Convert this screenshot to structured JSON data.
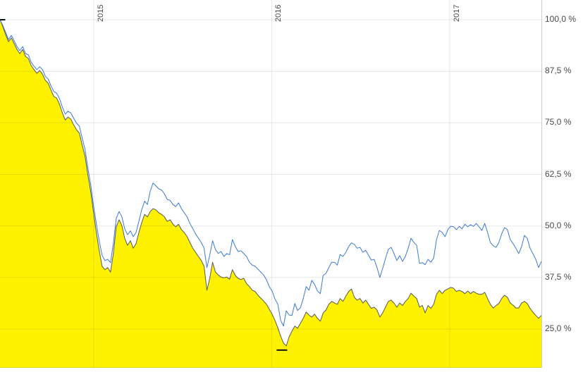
{
  "chart_data": {
    "type": "area+line",
    "title": "",
    "legend": "none",
    "background_color": "#ffffff",
    "grid_color": "rgba(0,0,0,0.09)",
    "axis_line_color": "#cccccc",
    "label_color": "#48484e",
    "x_axis": {
      "unit": "year",
      "range": [
        2014.473,
        2017.515
      ],
      "tick_years": [
        2015,
        2016,
        2017
      ],
      "tick_labels": [
        "2015",
        "2016",
        "2017"
      ],
      "label_rotation_deg": -90
    },
    "y_axis": {
      "unit": "%",
      "side": "right",
      "visible_range": [
        15.6,
        104.8
      ],
      "tick_values": [
        100,
        87.5,
        75,
        62.5,
        50,
        37.5,
        25
      ],
      "tick_labels": [
        "100,0 %",
        "87,5 %",
        "75,0 %",
        "62,5 %",
        "50,0 %",
        "37,5 %",
        "25,0 %"
      ]
    },
    "series": [
      {
        "name": "blue-line-series",
        "type": "line",
        "color": "#3b79d4",
        "values": [
          100.0,
          98.6,
          96.9,
          95.2,
          96.2,
          94.9,
          93.5,
          92.5,
          93.5,
          91.8,
          91.5,
          89.7,
          88.7,
          87.9,
          88.6,
          87.9,
          86.3,
          85.6,
          83.9,
          82.6,
          82.2,
          80.9,
          78.8,
          77.1,
          77.8,
          77.4,
          76.1,
          74.9,
          74.2,
          71.3,
          68.6,
          64.1,
          60.0,
          54.9,
          50.5,
          46.4,
          42.9,
          41.6,
          41.9,
          41.1,
          45.8,
          51.8,
          53.5,
          52.2,
          49.3,
          47.9,
          48.8,
          47.4,
          48.4,
          51.1,
          53.9,
          56.0,
          55.2,
          58.4,
          60.4,
          59.7,
          59.0,
          58.7,
          57.8,
          56.4,
          56.2,
          55.2,
          54.7,
          55.6,
          54.2,
          53.2,
          52.2,
          50.6,
          49.4,
          48.1,
          47.0,
          46.0,
          44.6,
          39.9,
          42.9,
          46.4,
          44.3,
          43.3,
          43.8,
          42.6,
          43.3,
          43.0,
          46.7,
          45.0,
          43.8,
          44.0,
          43.3,
          42.6,
          41.2,
          40.5,
          40.2,
          39.5,
          38.8,
          38.1,
          36.9,
          35.3,
          34.2,
          32.3,
          31.0,
          27.1,
          25.7,
          29.4,
          28.4,
          28.3,
          31.2,
          29.5,
          30.2,
          32.4,
          35.3,
          34.4,
          36.8,
          35.8,
          34.2,
          33.6,
          38.0,
          38.5,
          39.9,
          41.2,
          41.2,
          40.5,
          43.1,
          42.6,
          43.6,
          45.0,
          45.9,
          45.5,
          44.6,
          44.8,
          43.6,
          44.1,
          42.9,
          41.7,
          41.9,
          39.9,
          37.5,
          39.7,
          42.1,
          44.3,
          44.8,
          43.3,
          41.6,
          42.8,
          41.4,
          42.6,
          44.6,
          47.0,
          46.0,
          45.3,
          40.9,
          41.1,
          40.6,
          41.9,
          41.2,
          42.2,
          46.7,
          48.9,
          48.4,
          47.4,
          49.1,
          49.9,
          49.8,
          49.1,
          49.9,
          49.3,
          50.4,
          49.8,
          50.3,
          49.9,
          50.6,
          49.8,
          48.9,
          50.6,
          48.4,
          46.0,
          45.2,
          44.8,
          46.0,
          48.1,
          49.6,
          49.1,
          46.7,
          45.7,
          44.6,
          43.3,
          45.0,
          47.7,
          47.0,
          44.6,
          43.3,
          41.9,
          39.9,
          41.4
        ]
      },
      {
        "name": "yellow-area-series",
        "type": "area",
        "color": "#58585a",
        "fill": "#fef200",
        "values": [
          100.0,
          98.3,
          96.4,
          94.7,
          95.6,
          94.2,
          92.8,
          91.8,
          92.8,
          91.1,
          90.6,
          88.9,
          87.9,
          87.0,
          87.7,
          86.8,
          85.3,
          84.6,
          82.9,
          81.4,
          81.0,
          79.5,
          77.4,
          75.7,
          76.4,
          75.9,
          74.5,
          73.3,
          72.5,
          69.6,
          66.9,
          62.4,
          58.3,
          53.2,
          48.4,
          44.1,
          40.2,
          39.4,
          39.9,
          38.8,
          43.3,
          49.8,
          51.5,
          50.1,
          47.0,
          45.3,
          46.4,
          44.6,
          45.7,
          48.4,
          50.8,
          52.8,
          52.2,
          53.5,
          54.2,
          53.9,
          53.2,
          52.8,
          52.2,
          51.1,
          51.5,
          50.4,
          49.8,
          50.4,
          49.1,
          48.4,
          47.4,
          46.0,
          44.6,
          43.6,
          42.6,
          41.6,
          40.2,
          34.4,
          37.3,
          41.2,
          38.8,
          38.1,
          37.6,
          37.4,
          37.6,
          37.1,
          39.4,
          38.0,
          37.3,
          37.0,
          37.3,
          36.0,
          35.3,
          34.4,
          34.1,
          33.2,
          32.5,
          31.8,
          31.0,
          29.8,
          28.6,
          27.1,
          25.3,
          23.3,
          21.6,
          20.9,
          23.1,
          24.5,
          25.7,
          25.2,
          26.4,
          27.6,
          29.1,
          28.4,
          27.9,
          28.6,
          27.6,
          26.9,
          28.9,
          29.6,
          31.0,
          31.7,
          31.3,
          31.0,
          32.4,
          31.7,
          33.0,
          34.1,
          34.7,
          32.7,
          32.0,
          32.4,
          31.3,
          32.0,
          31.0,
          30.0,
          30.3,
          29.6,
          27.9,
          28.9,
          30.3,
          31.7,
          32.0,
          31.3,
          30.3,
          31.3,
          30.7,
          31.7,
          32.4,
          33.7,
          33.0,
          32.4,
          30.3,
          30.7,
          28.9,
          30.7,
          30.0,
          31.0,
          33.4,
          34.4,
          33.6,
          34.4,
          34.7,
          35.1,
          34.9,
          34.1,
          34.4,
          34.1,
          33.6,
          34.2,
          33.6,
          34.1,
          33.7,
          33.4,
          33.4,
          33.9,
          32.4,
          31.0,
          30.1,
          30.7,
          31.2,
          32.4,
          33.2,
          32.7,
          31.3,
          30.8,
          30.1,
          30.1,
          31.3,
          31.7,
          31.2,
          30.0,
          29.1,
          28.3,
          27.6,
          28.3
        ]
      }
    ],
    "markers": [
      {
        "name": "series-start-tick",
        "year": 2014.473,
        "pct": 100.0
      },
      {
        "name": "series-low-tick",
        "year": 2016.057,
        "pct": 19.9
      }
    ]
  }
}
